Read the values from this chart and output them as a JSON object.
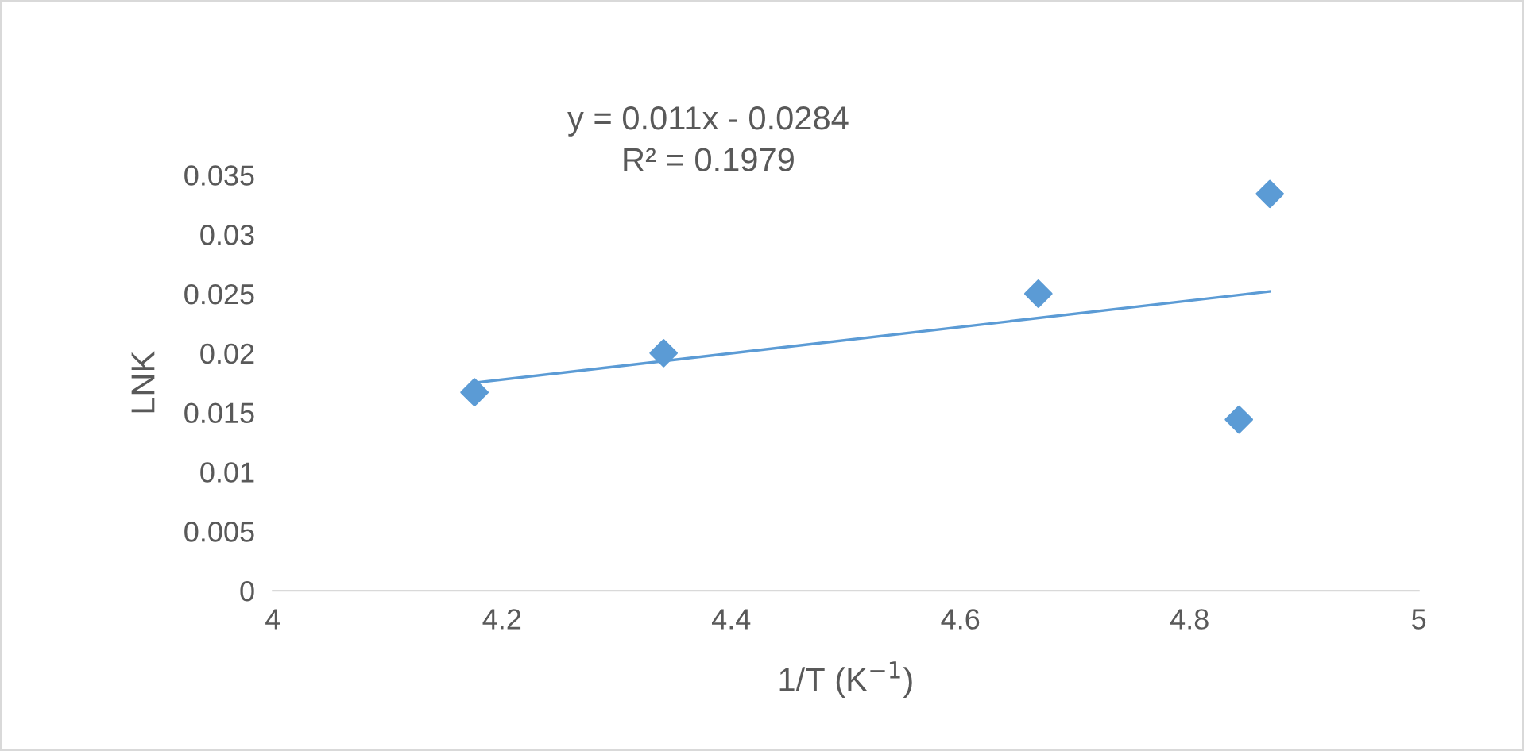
{
  "chart_data": {
    "type": "scatter",
    "xlabel": "1/T (K$^{−1}$)",
    "ylabel": "LNK",
    "series": [
      {
        "color": "#5b9bd5",
        "marker": "diamond",
        "x": [
          4.176,
          4.341,
          4.668,
          4.843,
          4.87
        ],
        "values": [
          0.0167,
          0.02,
          0.025,
          0.0144,
          0.0334
        ]
      },
      {
        "type": "line",
        "color": "#5b9bd5",
        "marker": "none",
        "x": [
          4.176,
          4.87
        ],
        "values": [
          0.0175,
          0.0252
        ]
      }
    ],
    "annotations": [
      "y = 0.011x - 0.0284",
      "R² = 0.1979"
    ],
    "xlim": [
      4,
      5
    ],
    "xticks": [
      4,
      4.2,
      4.4,
      4.6,
      4.8,
      5
    ],
    "ylim": [
      0,
      0.035
    ],
    "yticks": [
      0,
      0.005,
      0.01,
      0.015,
      0.02,
      0.025,
      0.03,
      0.035
    ],
    "grid": false,
    "legend": false
  }
}
